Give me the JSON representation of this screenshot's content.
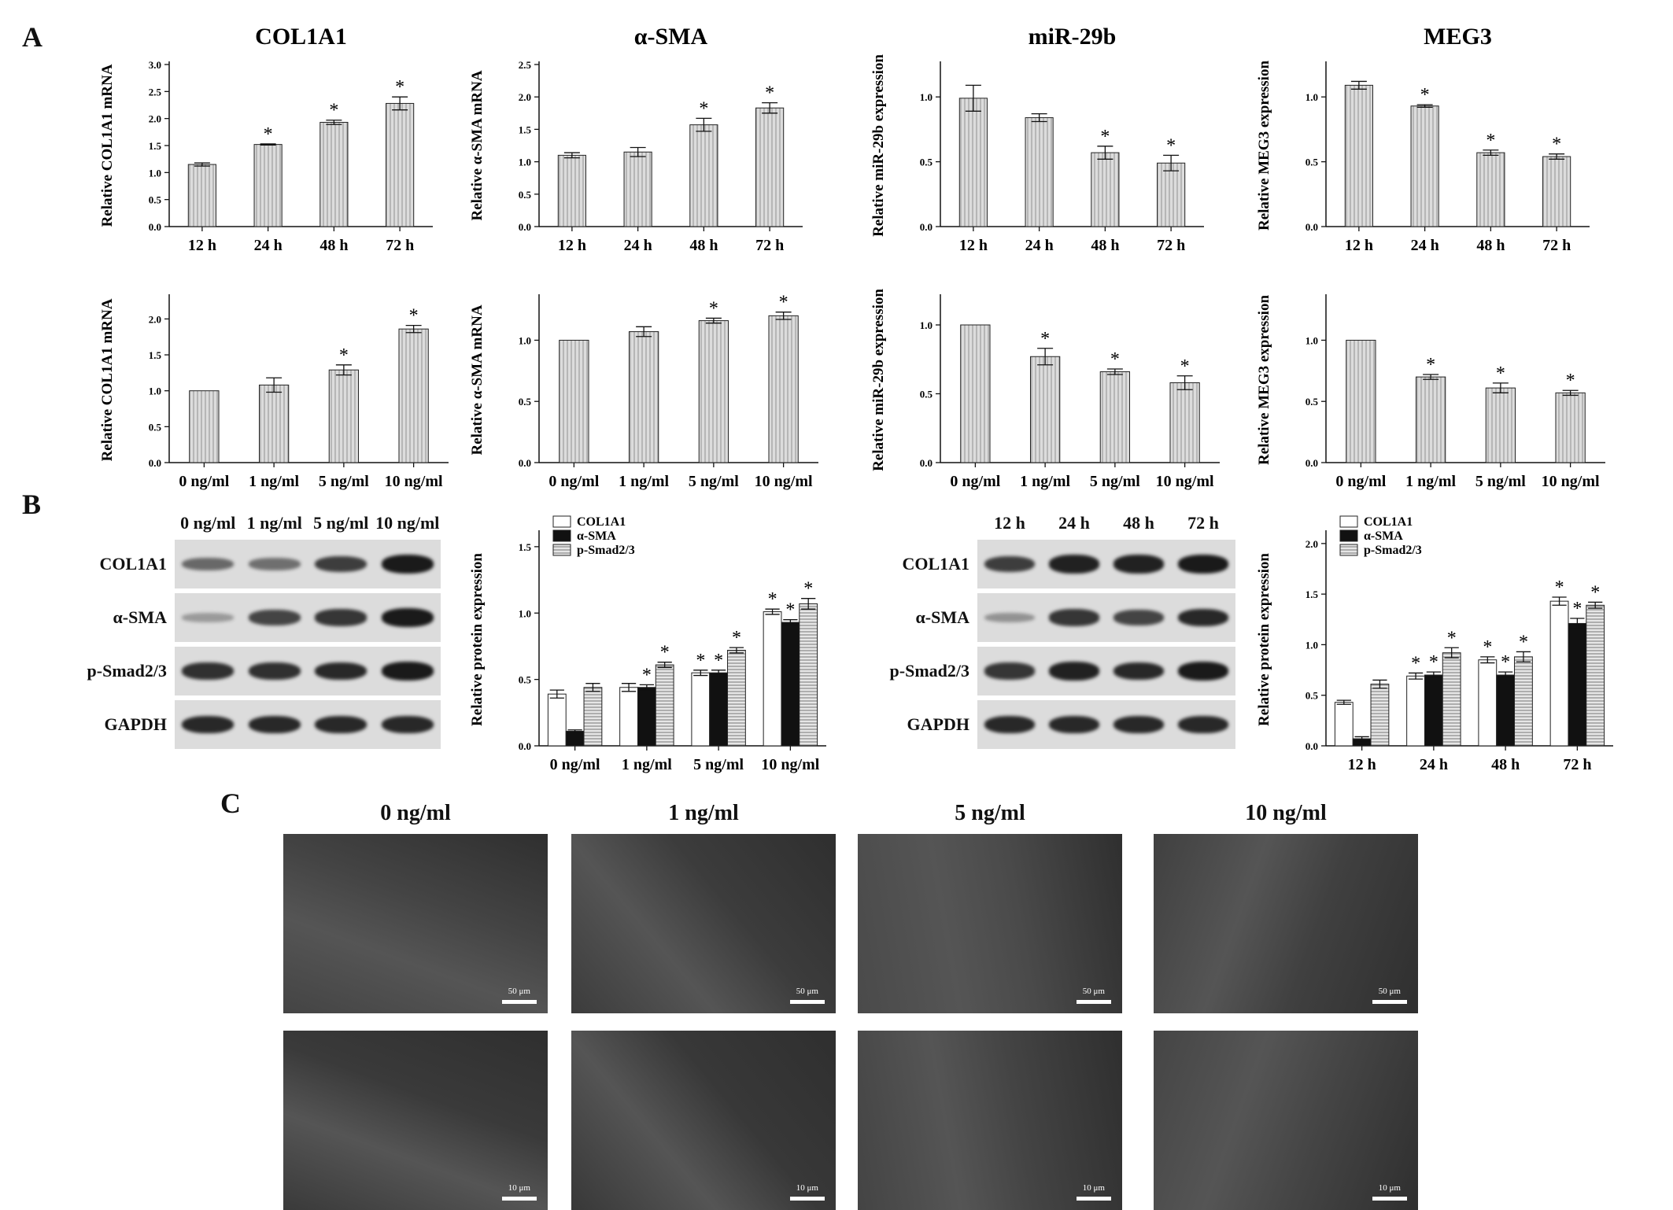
{
  "panels": {
    "a": "A",
    "b": "B",
    "c": "C"
  },
  "colors": {
    "bar_fill": "#dcdcdc",
    "bar_stripe": "#9c9c9c",
    "black": "#111111",
    "white": "#ffffff"
  },
  "chart_data": [
    {
      "id": "a1",
      "type": "bar",
      "title": "COL1A1",
      "ylabel": "Relative COL1A1 mRNA",
      "categories": [
        "12 h",
        "24 h",
        "48 h",
        "72 h"
      ],
      "values": [
        1.15,
        1.52,
        1.93,
        2.28
      ],
      "errors": [
        0.03,
        0.01,
        0.04,
        0.12
      ],
      "sig": [
        false,
        true,
        true,
        true
      ],
      "ylim": [
        0,
        3.0
      ],
      "yticks": [
        "0.0",
        "0.5",
        "1.0",
        "1.5",
        "2.0",
        "2.5",
        "3.0"
      ]
    },
    {
      "id": "a2",
      "type": "bar",
      "title": "α-SMA",
      "ylabel": "Relative α-SMA mRNA",
      "categories": [
        "12 h",
        "24 h",
        "48 h",
        "72 h"
      ],
      "values": [
        1.1,
        1.15,
        1.57,
        1.83
      ],
      "errors": [
        0.04,
        0.07,
        0.1,
        0.08
      ],
      "sig": [
        false,
        false,
        true,
        true
      ],
      "ylim": [
        0,
        2.5
      ],
      "yticks": [
        "0.0",
        "0.5",
        "1.0",
        "1.5",
        "2.0",
        "2.5"
      ]
    },
    {
      "id": "a3",
      "type": "bar",
      "title": "miR-29b",
      "ylabel": "Relative miR-29b expression",
      "categories": [
        "12 h",
        "24 h",
        "48 h",
        "72 h"
      ],
      "values": [
        0.99,
        0.84,
        0.57,
        0.49
      ],
      "errors": [
        0.1,
        0.03,
        0.05,
        0.06
      ],
      "sig": [
        false,
        false,
        true,
        true
      ],
      "ylim": [
        0,
        1.25
      ],
      "yticks": [
        "0.0",
        "0.5",
        "1.0"
      ]
    },
    {
      "id": "a4",
      "type": "bar",
      "title": "MEG3",
      "ylabel": "Relative MEG3 expression",
      "categories": [
        "12 h",
        "24 h",
        "48 h",
        "72 h"
      ],
      "values": [
        1.09,
        0.93,
        0.57,
        0.54
      ],
      "errors": [
        0.03,
        0.01,
        0.02,
        0.02
      ],
      "sig": [
        false,
        true,
        true,
        true
      ],
      "ylim": [
        0,
        1.25
      ],
      "yticks": [
        "0.0",
        "0.5",
        "1.0"
      ]
    },
    {
      "id": "a5",
      "type": "bar",
      "title": "",
      "ylabel": "Relative COL1A1 mRNA",
      "categories": [
        "0 ng/ml",
        "1 ng/ml",
        "5 ng/ml",
        "10 ng/ml"
      ],
      "values": [
        1.0,
        1.08,
        1.29,
        1.86
      ],
      "errors": [
        0,
        0.1,
        0.07,
        0.05
      ],
      "sig": [
        false,
        false,
        true,
        true
      ],
      "ylim": [
        0,
        2.3
      ],
      "yticks": [
        "0.0",
        "0.5",
        "1.0",
        "1.5",
        "2.0"
      ]
    },
    {
      "id": "a6",
      "type": "bar",
      "title": "",
      "ylabel": "Relative α-SMA mRNA",
      "categories": [
        "0 ng/ml",
        "1 ng/ml",
        "5 ng/ml",
        "10 ng/ml"
      ],
      "values": [
        1.0,
        1.07,
        1.16,
        1.2
      ],
      "errors": [
        0,
        0.04,
        0.02,
        0.03
      ],
      "sig": [
        false,
        false,
        true,
        true
      ],
      "ylim": [
        0,
        1.35
      ],
      "yticks": [
        "0.0",
        "0.5",
        "1.0"
      ]
    },
    {
      "id": "a7",
      "type": "bar",
      "title": "",
      "ylabel": "Relative miR-29b expression",
      "categories": [
        "0 ng/ml",
        "1 ng/ml",
        "5 ng/ml",
        "10 ng/ml"
      ],
      "values": [
        1.0,
        0.77,
        0.66,
        0.58
      ],
      "errors": [
        0,
        0.06,
        0.02,
        0.05
      ],
      "sig": [
        false,
        true,
        true,
        true
      ],
      "ylim": [
        0,
        1.2
      ],
      "yticks": [
        "0.0",
        "0.5",
        "1.0"
      ]
    },
    {
      "id": "a8",
      "type": "bar",
      "title": "",
      "ylabel": "Relative MEG3 expression",
      "categories": [
        "0 ng/ml",
        "1 ng/ml",
        "5 ng/ml",
        "10 ng/ml"
      ],
      "values": [
        1.0,
        0.7,
        0.61,
        0.57
      ],
      "errors": [
        0,
        0.02,
        0.04,
        0.02
      ],
      "sig": [
        false,
        true,
        true,
        true
      ],
      "ylim": [
        0,
        1.35
      ],
      "yticks": [
        "0.0",
        "0.5",
        "1.0"
      ]
    },
    {
      "id": "b1",
      "type": "bar",
      "title": "",
      "ylabel": "Relative  protein expression",
      "categories": [
        "0 ng/ml",
        "1 ng/ml",
        "5 ng/ml",
        "10 ng/ml"
      ],
      "ylim": [
        0,
        1.6
      ],
      "yticks": [
        "0.0",
        "0.5",
        "1.0",
        "1.5"
      ],
      "series": [
        {
          "name": "COL1A1",
          "values": [
            0.39,
            0.44,
            0.55,
            1.01
          ],
          "errors": [
            0.03,
            0.03,
            0.02,
            0.02
          ],
          "sig": [
            false,
            false,
            true,
            true
          ]
        },
        {
          "name": "α-SMA",
          "values": [
            0.11,
            0.44,
            0.55,
            0.93
          ],
          "errors": [
            0.01,
            0.02,
            0.02,
            0.02
          ],
          "sig": [
            false,
            true,
            true,
            true
          ]
        },
        {
          "name": "p-Smad2/3",
          "values": [
            0.44,
            0.61,
            0.72,
            1.07
          ],
          "errors": [
            0.03,
            0.02,
            0.02,
            0.04
          ],
          "sig": [
            false,
            true,
            true,
            true
          ]
        }
      ]
    },
    {
      "id": "b2",
      "type": "bar",
      "title": "",
      "ylabel": "Relative  protein expression",
      "categories": [
        "12 h",
        "24 h",
        "48 h",
        "72 h"
      ],
      "ylim": [
        0,
        2.1
      ],
      "yticks": [
        "0.0",
        "0.5",
        "1.0",
        "1.5",
        "2.0"
      ],
      "series": [
        {
          "name": "COL1A1",
          "values": [
            0.43,
            0.69,
            0.85,
            1.43
          ],
          "errors": [
            0.02,
            0.03,
            0.03,
            0.04
          ],
          "sig": [
            false,
            true,
            true,
            true
          ]
        },
        {
          "name": "α-SMA",
          "values": [
            0.07,
            0.7,
            0.7,
            1.21
          ],
          "errors": [
            0.02,
            0.03,
            0.03,
            0.05
          ],
          "sig": [
            false,
            true,
            true,
            true
          ]
        },
        {
          "name": "p-Smad2/3",
          "values": [
            0.61,
            0.92,
            0.88,
            1.39
          ],
          "errors": [
            0.04,
            0.05,
            0.05,
            0.03
          ],
          "sig": [
            false,
            true,
            true,
            true
          ]
        }
      ]
    }
  ],
  "blots": {
    "left": {
      "lanes": [
        "0 ng/ml",
        "1 ng/ml",
        "5 ng/ml",
        "10 ng/ml"
      ],
      "rows": [
        "COL1A1",
        "α-SMA",
        "p-Smad2/3",
        "GAPDH"
      ],
      "intensity": [
        [
          0.45,
          0.4,
          0.75,
          1.0
        ],
        [
          0.1,
          0.7,
          0.8,
          1.0
        ],
        [
          0.85,
          0.85,
          0.9,
          1.0
        ],
        [
          0.9,
          0.9,
          0.9,
          0.9
        ]
      ]
    },
    "right": {
      "lanes": [
        "12 h",
        "24 h",
        "48 h",
        "72 h"
      ],
      "rows": [
        "COL1A1",
        "α-SMA",
        "p-Smad2/3",
        "GAPDH"
      ],
      "intensity": [
        [
          0.75,
          0.95,
          0.95,
          1.0
        ],
        [
          0.15,
          0.8,
          0.7,
          0.9
        ],
        [
          0.8,
          0.95,
          0.9,
          1.0
        ],
        [
          0.9,
          0.9,
          0.9,
          0.9
        ]
      ]
    }
  },
  "micrographs": {
    "columns": [
      "0 ng/ml",
      "1 ng/ml",
      "5 ng/ml",
      "10 ng/ml"
    ],
    "row1_scale": "50 μm",
    "row2_scale": "10 μm"
  },
  "sig_mark": "*"
}
